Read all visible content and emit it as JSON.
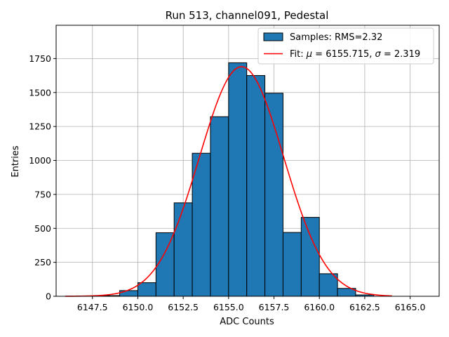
{
  "chart_data": {
    "type": "bar",
    "title": "Run 513, channel091, Pedestal",
    "xlabel": "ADC Counts",
    "ylabel": "Entries",
    "xlim": [
      6145.5,
      6166.6
    ],
    "ylim": [
      0,
      1995
    ],
    "grid": true,
    "legend_position": "top-right",
    "colors": {
      "bars": "#1f77b4",
      "bar_edge": "#000000",
      "fit": "#ff0000",
      "grid": "#b0b0b0"
    },
    "x_ticks": [
      6147.5,
      6150.0,
      6152.5,
      6155.0,
      6157.5,
      6160.0,
      6162.5,
      6165.0
    ],
    "x_tick_labels": [
      "6147.5",
      "6150.0",
      "6152.5",
      "6155.0",
      "6157.5",
      "6160.0",
      "6162.5",
      "6165.0"
    ],
    "y_ticks": [
      0,
      250,
      500,
      750,
      1000,
      1250,
      1500,
      1750
    ],
    "y_tick_labels": [
      "0",
      "250",
      "500",
      "750",
      "1000",
      "1250",
      "1500",
      "1750"
    ],
    "series": [
      {
        "name": "Samples: RMS=2.32",
        "kind": "histogram",
        "bins": [
          {
            "x0": 6148,
            "x1": 6149,
            "value": 5
          },
          {
            "x0": 6149,
            "x1": 6150,
            "value": 42
          },
          {
            "x0": 6150,
            "x1": 6151,
            "value": 100
          },
          {
            "x0": 6151,
            "x1": 6152,
            "value": 468
          },
          {
            "x0": 6152,
            "x1": 6153,
            "value": 688
          },
          {
            "x0": 6153,
            "x1": 6154,
            "value": 1053
          },
          {
            "x0": 6154,
            "x1": 6155,
            "value": 1322
          },
          {
            "x0": 6155,
            "x1": 6156,
            "value": 1719
          },
          {
            "x0": 6156,
            "x1": 6157,
            "value": 1625
          },
          {
            "x0": 6157,
            "x1": 6158,
            "value": 1495
          },
          {
            "x0": 6158,
            "x1": 6159,
            "value": 470
          },
          {
            "x0": 6159,
            "x1": 6160,
            "value": 581
          },
          {
            "x0": 6160,
            "x1": 6161,
            "value": 166
          },
          {
            "x0": 6161,
            "x1": 6162,
            "value": 58
          },
          {
            "x0": 6162,
            "x1": 6163,
            "value": 10
          }
        ]
      },
      {
        "name": "Fit: μ = 6155.715, σ = 2.319",
        "legend_parts": [
          "Fit: ",
          "μ",
          " = 6155.715, ",
          "σ",
          " = 2.319"
        ],
        "kind": "gaussian",
        "mu": 6155.715,
        "sigma": 2.319,
        "amplitude": 1690,
        "x_range": [
          6146,
          6164
        ]
      }
    ]
  }
}
